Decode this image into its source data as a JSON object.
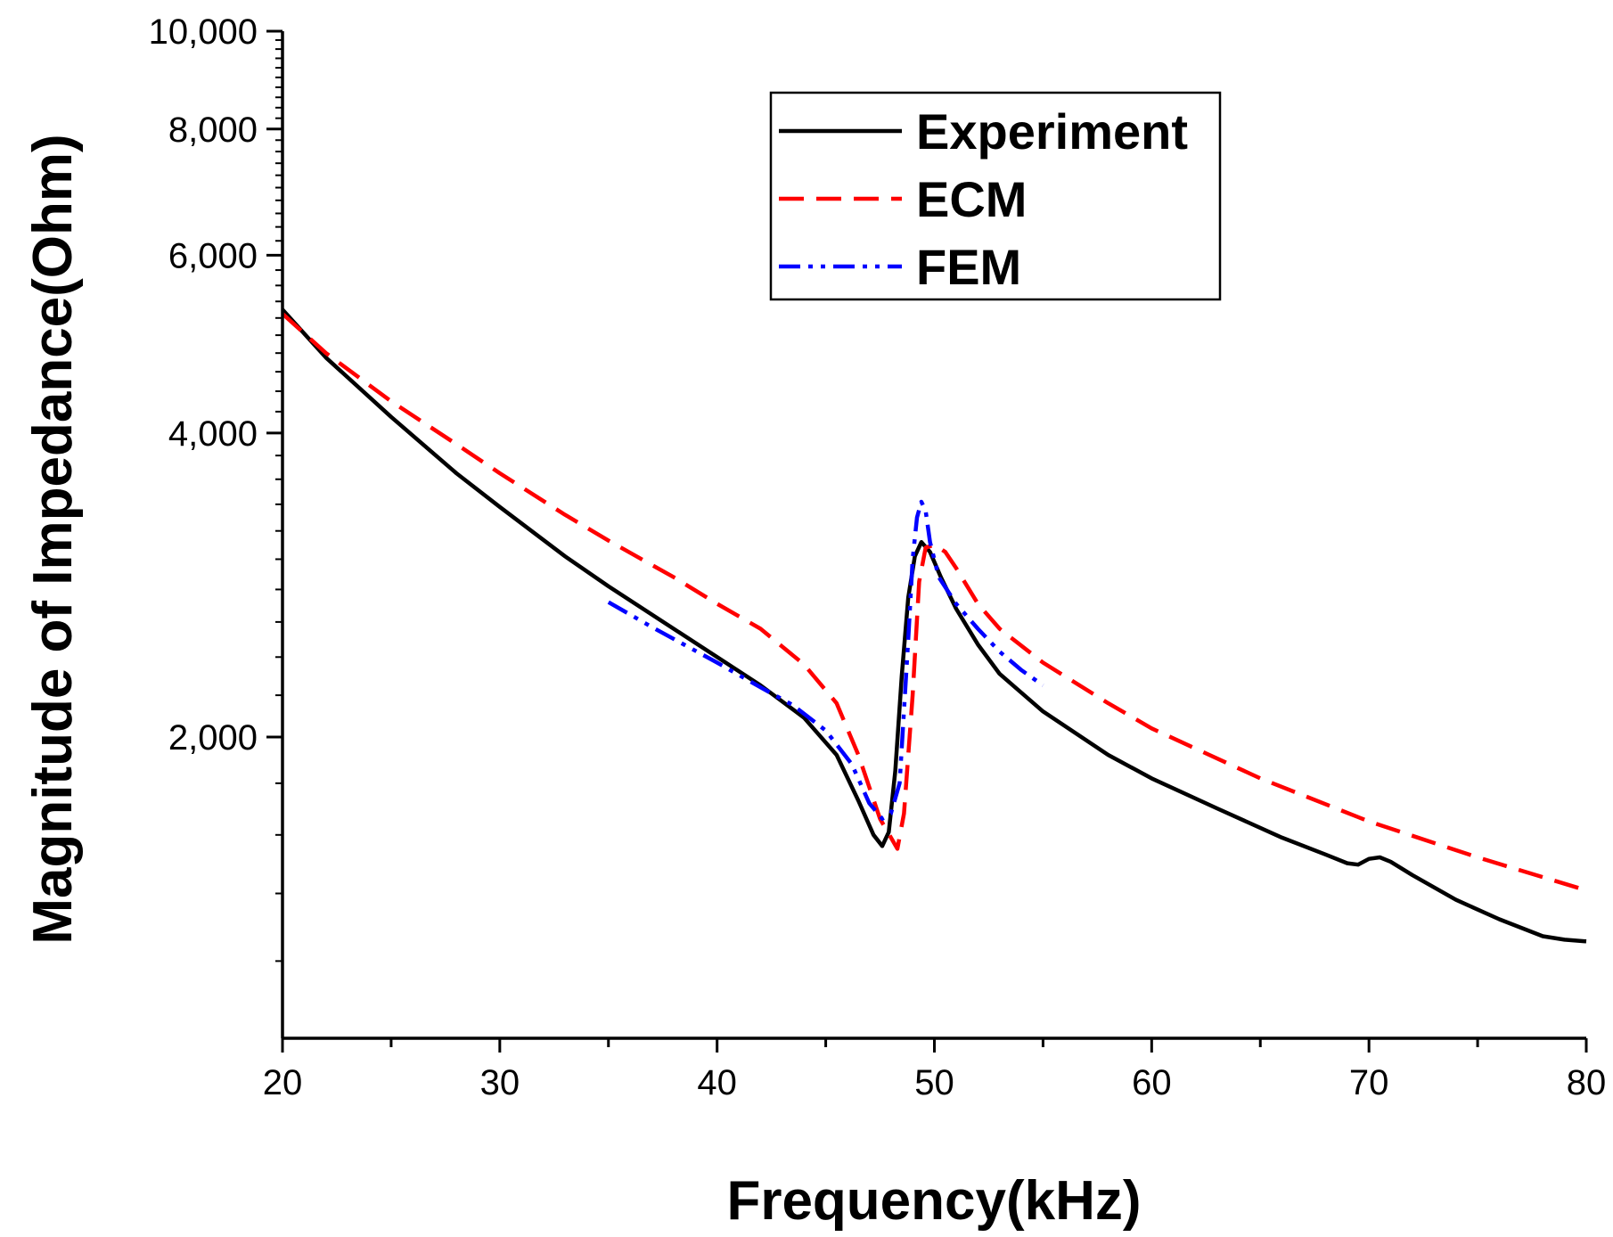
{
  "chart_data": {
    "type": "line",
    "title": "",
    "xlabel": "Frequency(kHz)",
    "ylabel": "Magnitude of Impedance(Ohm)",
    "xlim": [
      20,
      80
    ],
    "ylim": [
      1000,
      10000
    ],
    "yscale": "log",
    "grid": false,
    "legend_position": "top-right",
    "x_ticks": [
      20,
      30,
      40,
      50,
      60,
      70,
      80
    ],
    "x_tick_labels": [
      "20",
      "30",
      "40",
      "50",
      "60",
      "70",
      "80"
    ],
    "y_ticks": [
      2000,
      4000,
      6000,
      8000,
      10000
    ],
    "y_tick_labels": [
      "2,000",
      "4,000",
      "6,000",
      "8,000",
      "10,000"
    ],
    "series": [
      {
        "name": "Experiment",
        "color": "#000000",
        "dash": "solid",
        "x": [
          20,
          22,
          25,
          28,
          30,
          33,
          35,
          38,
          40,
          42,
          44,
          45.5,
          46.5,
          47.2,
          47.6,
          47.9,
          48.2,
          48.5,
          48.8,
          49.1,
          49.4,
          49.8,
          50.3,
          51,
          52,
          53,
          55,
          58,
          60,
          63,
          66,
          68,
          69,
          69.5,
          70,
          70.5,
          71,
          72,
          74,
          76,
          78,
          79,
          80
        ],
        "values": [
          5300,
          4750,
          4150,
          3650,
          3380,
          3020,
          2820,
          2560,
          2400,
          2250,
          2090,
          1920,
          1730,
          1600,
          1560,
          1610,
          1850,
          2300,
          2750,
          3020,
          3120,
          3050,
          2880,
          2680,
          2470,
          2310,
          2120,
          1920,
          1820,
          1700,
          1590,
          1530,
          1500,
          1495,
          1515,
          1520,
          1505,
          1460,
          1380,
          1320,
          1270,
          1260,
          1255
        ]
      },
      {
        "name": "ECM",
        "color": "#ff0000",
        "dash": "dashed",
        "x": [
          20,
          22,
          25,
          28,
          30,
          33,
          35,
          38,
          40,
          42,
          44,
          45.5,
          46.5,
          47.5,
          48.3,
          48.6,
          49,
          49.3,
          49.6,
          50,
          50.5,
          51,
          52,
          53,
          55,
          58,
          60,
          65,
          70,
          75,
          80
        ],
        "values": [
          5250,
          4800,
          4300,
          3900,
          3650,
          3320,
          3130,
          2880,
          2710,
          2560,
          2360,
          2160,
          1920,
          1660,
          1550,
          1680,
          2200,
          2850,
          3080,
          3100,
          3050,
          2940,
          2710,
          2560,
          2370,
          2160,
          2040,
          1820,
          1650,
          1520,
          1410
        ]
      },
      {
        "name": "FEM",
        "color": "#0000ff",
        "dash": "dashdotdot",
        "x": [
          35,
          37,
          40,
          42,
          43.5,
          45,
          46.2,
          47,
          47.6,
          48,
          48.4,
          48.8,
          49,
          49.2,
          49.4,
          49.6,
          49.8,
          50.2,
          51,
          52,
          53,
          54,
          55
        ],
        "values": [
          2720,
          2570,
          2370,
          2240,
          2150,
          2030,
          1880,
          1720,
          1660,
          1680,
          1800,
          2500,
          3000,
          3300,
          3420,
          3350,
          3120,
          2880,
          2710,
          2560,
          2430,
          2330,
          2250
        ]
      }
    ]
  }
}
